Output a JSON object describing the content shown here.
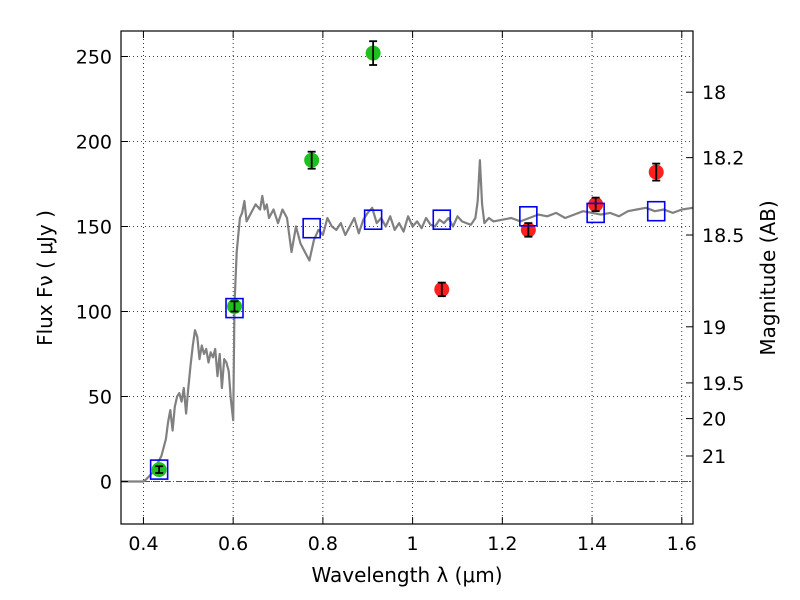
{
  "chart_data": {
    "type": "scatter",
    "xlabel": "Wavelength  λ (μm)",
    "ylabel": "Flux  Fν  ( μJy )",
    "ylabel_right": "Magnitude (AB)",
    "xlim": [
      0.35,
      1.625
    ],
    "ylim": [
      -25,
      265
    ],
    "grid": true,
    "x_ticks": [
      0.4,
      0.6,
      0.8,
      1.0,
      1.2,
      1.4,
      1.6
    ],
    "x_tick_labels": [
      "0.4",
      "0.6",
      "0.8",
      "1",
      "1.2",
      "1.4",
      "1.6"
    ],
    "y_ticks": [
      0,
      50,
      100,
      150,
      200,
      250
    ],
    "y_tick_labels": [
      "0",
      "50",
      "100",
      "150",
      "200",
      "250"
    ],
    "right_ticks": [
      {
        "label": "18",
        "flux": 229
      },
      {
        "label": "18.2",
        "flux": 190.5
      },
      {
        "label": "18.5",
        "flux": 145
      },
      {
        "label": "19",
        "flux": 91
      },
      {
        "label": "19.5",
        "flux": 58
      },
      {
        "label": "20",
        "flux": 37
      },
      {
        "label": "21",
        "flux": 15
      }
    ],
    "model_spectrum": {
      "color": "#808080",
      "x": [
        0.35,
        0.4,
        0.405,
        0.42,
        0.43,
        0.44,
        0.45,
        0.455,
        0.46,
        0.465,
        0.47,
        0.475,
        0.48,
        0.485,
        0.49,
        0.495,
        0.5,
        0.505,
        0.51,
        0.515,
        0.52,
        0.525,
        0.53,
        0.535,
        0.54,
        0.545,
        0.55,
        0.555,
        0.56,
        0.565,
        0.57,
        0.575,
        0.58,
        0.585,
        0.59,
        0.595,
        0.6,
        0.603,
        0.608,
        0.615,
        0.62,
        0.625,
        0.63,
        0.64,
        0.65,
        0.66,
        0.665,
        0.67,
        0.675,
        0.68,
        0.69,
        0.7,
        0.71,
        0.72,
        0.73,
        0.74,
        0.75,
        0.76,
        0.77,
        0.78,
        0.79,
        0.8,
        0.81,
        0.82,
        0.83,
        0.84,
        0.85,
        0.86,
        0.87,
        0.88,
        0.89,
        0.9,
        0.91,
        0.92,
        0.93,
        0.94,
        0.95,
        0.96,
        0.97,
        0.98,
        0.99,
        1.0,
        1.01,
        1.02,
        1.03,
        1.04,
        1.05,
        1.06,
        1.07,
        1.08,
        1.09,
        1.1,
        1.11,
        1.12,
        1.13,
        1.14,
        1.145,
        1.15,
        1.155,
        1.16,
        1.17,
        1.18,
        1.2,
        1.22,
        1.24,
        1.26,
        1.28,
        1.3,
        1.32,
        1.34,
        1.36,
        1.38,
        1.4,
        1.42,
        1.44,
        1.46,
        1.48,
        1.5,
        1.52,
        1.54,
        1.56,
        1.58,
        1.6,
        1.625
      ],
      "y": [
        0,
        0,
        1,
        5,
        10,
        15,
        25,
        35,
        42,
        30,
        44,
        50,
        52,
        47,
        55,
        40,
        55,
        68,
        80,
        89,
        85,
        72,
        80,
        75,
        78,
        70,
        76,
        73,
        78,
        62,
        75,
        55,
        72,
        70,
        65,
        48,
        36,
        104,
        135,
        155,
        158,
        165,
        153,
        158,
        163,
        160,
        168,
        160,
        163,
        155,
        160,
        152,
        160,
        155,
        135,
        150,
        140,
        135,
        130,
        142,
        148,
        145,
        155,
        150,
        148,
        152,
        145,
        150,
        155,
        146,
        154,
        158,
        161,
        152,
        155,
        150,
        156,
        148,
        152,
        147,
        156,
        150,
        153,
        149,
        155,
        151,
        150,
        154,
        152,
        155,
        150,
        156,
        153,
        152,
        151,
        155,
        165,
        189,
        163,
        152,
        155,
        153,
        154,
        155,
        153,
        155,
        157,
        156,
        158,
        155,
        157,
        159,
        158,
        157,
        158,
        156,
        159,
        160,
        161,
        159,
        160,
        158,
        160,
        161
      ]
    },
    "series": [
      {
        "color": "#1fbf1f",
        "marker": "circle",
        "points": [
          {
            "x": 0.435,
            "y": 7,
            "err": 2
          },
          {
            "x": 0.603,
            "y": 103,
            "err": 3
          },
          {
            "x": 0.775,
            "y": 189,
            "err": 5
          },
          {
            "x": 0.912,
            "y": 252,
            "err": 7
          }
        ]
      },
      {
        "color": "#ff1f1f",
        "marker": "circle",
        "points": [
          {
            "x": 1.065,
            "y": 113,
            "err": 4
          },
          {
            "x": 1.258,
            "y": 148,
            "err": 4
          },
          {
            "x": 1.408,
            "y": 163,
            "err": 4
          },
          {
            "x": 1.543,
            "y": 182,
            "err": 5
          }
        ]
      },
      {
        "color": "#0000ee",
        "marker": "square",
        "points": [
          {
            "x": 0.435,
            "y": 7
          },
          {
            "x": 0.603,
            "y": 102
          },
          {
            "x": 0.775,
            "y": 149
          },
          {
            "x": 0.912,
            "y": 154
          },
          {
            "x": 1.065,
            "y": 154
          },
          {
            "x": 1.258,
            "y": 156
          },
          {
            "x": 1.408,
            "y": 158
          },
          {
            "x": 1.543,
            "y": 159
          }
        ]
      }
    ]
  }
}
